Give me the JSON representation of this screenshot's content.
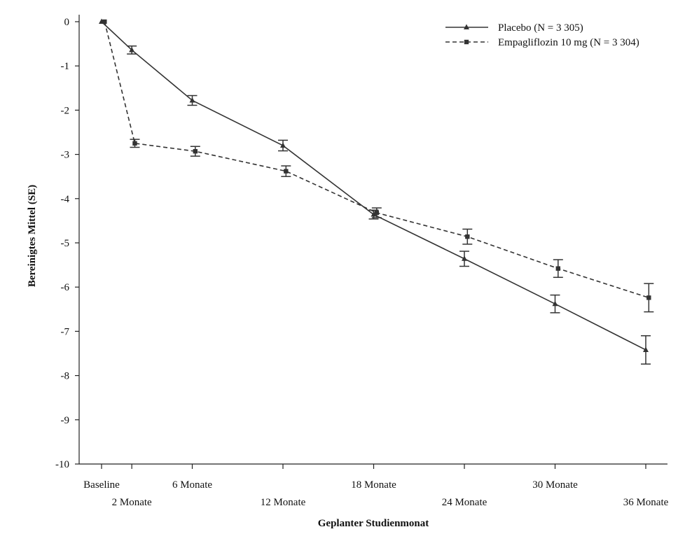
{
  "chart_data": {
    "type": "line",
    "xlabel": "Geplanter Studienmonat",
    "ylabel": "Bereinigtes Mittel (SE)",
    "ylim": [
      -10,
      0
    ],
    "yticks": [
      0,
      -1,
      -2,
      -3,
      -4,
      -5,
      -6,
      -7,
      -8,
      -9,
      -10
    ],
    "xlim": [
      -1,
      37
    ],
    "xticks": [
      {
        "month": 0,
        "label": "Baseline",
        "row": 1
      },
      {
        "month": 2,
        "label": "2 Monate",
        "row": 2
      },
      {
        "month": 6,
        "label": "6 Monate",
        "row": 1
      },
      {
        "month": 12,
        "label": "12 Monate",
        "row": 2
      },
      {
        "month": 18,
        "label": "18 Monate",
        "row": 1
      },
      {
        "month": 24,
        "label": "24 Monate",
        "row": 2
      },
      {
        "month": 30,
        "label": "30 Monate",
        "row": 1
      },
      {
        "month": 36,
        "label": "36 Monate",
        "row": 2
      }
    ],
    "legend_position": "top-right",
    "grid": false,
    "series": [
      {
        "name": "Placebo (N = 3 305)",
        "style": "solid",
        "marker": "triangle",
        "color": "#333333",
        "points": [
          {
            "x": 0,
            "y": 0.0,
            "se": 0.0
          },
          {
            "x": 2,
            "y": -0.64,
            "se": 0.09
          },
          {
            "x": 6,
            "y": -1.78,
            "se": 0.11
          },
          {
            "x": 12,
            "y": -2.8,
            "se": 0.12
          },
          {
            "x": 18,
            "y": -4.36,
            "se": 0.1
          },
          {
            "x": 24,
            "y": -5.36,
            "se": 0.17
          },
          {
            "x": 30,
            "y": -6.38,
            "se": 0.2
          },
          {
            "x": 36,
            "y": -7.42,
            "se": 0.32
          }
        ]
      },
      {
        "name": "Empagliflozin 10 mg (N = 3 304)",
        "style": "dashed",
        "marker": "square",
        "color": "#333333",
        "points": [
          {
            "x": 0.2,
            "y": 0.0,
            "se": 0.0
          },
          {
            "x": 2.2,
            "y": -2.75,
            "se": 0.09
          },
          {
            "x": 6.2,
            "y": -2.93,
            "se": 0.11
          },
          {
            "x": 12.2,
            "y": -3.38,
            "se": 0.12
          },
          {
            "x": 18.2,
            "y": -4.32,
            "se": 0.11
          },
          {
            "x": 24.2,
            "y": -4.86,
            "se": 0.17
          },
          {
            "x": 30.2,
            "y": -5.58,
            "se": 0.2
          },
          {
            "x": 36.2,
            "y": -6.24,
            "se": 0.32
          }
        ]
      }
    ]
  }
}
